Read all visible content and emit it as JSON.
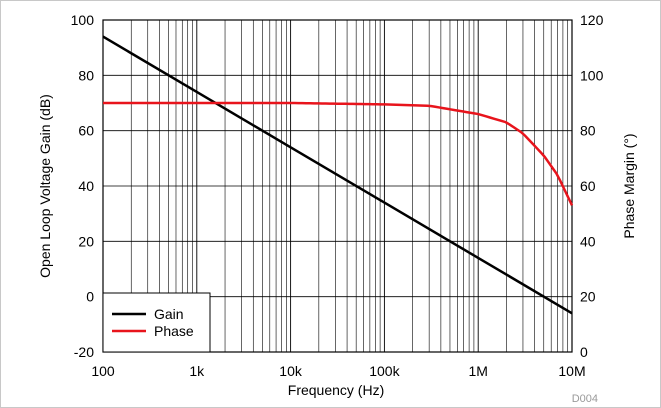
{
  "chart_data": {
    "type": "line",
    "xlabel": "Frequency (Hz)",
    "ylabel_left": "Open Loop Voltage Gain (dB)",
    "ylabel_right": "Phase Margin (°)",
    "x_scale": "log",
    "xlim": [
      100,
      10000000
    ],
    "ylim_left": [
      -20,
      100
    ],
    "ylim_right": [
      0,
      120
    ],
    "x_tick_labels": [
      "100",
      "1k",
      "10k",
      "100k",
      "1M",
      "10M"
    ],
    "y_left_tick_labels": [
      "-20",
      "0",
      "20",
      "40",
      "60",
      "80",
      "100"
    ],
    "y_right_tick_labels": [
      "0",
      "20",
      "40",
      "60",
      "80",
      "100",
      "120"
    ],
    "grid": true,
    "legend_position": "bottom-left",
    "series": [
      {
        "name": "Gain",
        "axis": "left",
        "color": "#000000",
        "x": [
          100,
          1000,
          10000,
          100000,
          1000000,
          10000000
        ],
        "y": [
          94,
          74,
          54,
          34,
          14,
          -6
        ]
      },
      {
        "name": "Phase",
        "axis": "right",
        "color": "#e8141c",
        "x": [
          100,
          1000,
          10000,
          100000,
          300000,
          1000000,
          2000000,
          3000000,
          5000000,
          7000000,
          10000000
        ],
        "y": [
          90,
          90,
          90,
          89.5,
          89,
          86,
          83,
          79,
          71,
          64,
          53
        ]
      }
    ],
    "annotation": "D004"
  }
}
